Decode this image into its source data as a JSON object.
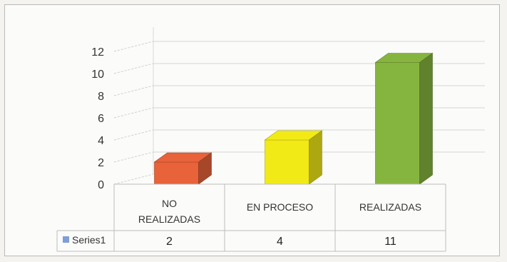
{
  "chart_data": {
    "type": "bar",
    "categories": [
      "NO REALIZADAS",
      "EN PROCESO",
      "REALIZADAS"
    ],
    "category_lines": [
      [
        "NO",
        "REALIZADAS"
      ],
      [
        "EN PROCESO"
      ],
      [
        "REALIZADAS"
      ]
    ],
    "series": [
      {
        "name": "Series1",
        "values": [
          2,
          4,
          11
        ],
        "value_labels": [
          "2",
          "4",
          "11"
        ],
        "colors": [
          "#e8623a",
          "#f2ea16",
          "#86b53f"
        ]
      }
    ],
    "legend_color": "#7f9ed8",
    "ylim": [
      0,
      12
    ],
    "yticks": [
      "0",
      "2",
      "4",
      "6",
      "8",
      "10",
      "12"
    ],
    "grid": true,
    "legend": "data-table",
    "style": "3d-column"
  }
}
